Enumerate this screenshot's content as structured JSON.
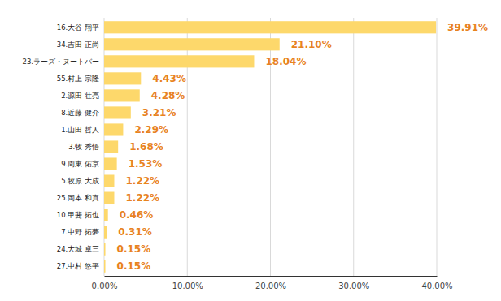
{
  "chart_data": {
    "type": "bar",
    "orientation": "horizontal",
    "categories": [
      "16.大谷 翔平",
      "34.吉田 正尚",
      "23.ラーズ・ヌートバー",
      "55.村上 宗隆",
      "2.源田 壮亮",
      "8.近藤 健介",
      "1.山田 哲人",
      "3.牧 秀悟",
      "9.周東 佑京",
      "5.牧原 大成",
      "25.岡本 和真",
      "10.甲斐 拓也",
      "7.中野 拓夢",
      "24.大城 卓三",
      "27.中村 悠平"
    ],
    "values": [
      39.91,
      21.1,
      18.04,
      4.43,
      4.28,
      3.21,
      2.29,
      1.68,
      1.53,
      1.22,
      1.22,
      0.46,
      0.31,
      0.15,
      0.15
    ],
    "value_labels": [
      "39.91%",
      "21.10%",
      "18.04%",
      "4.43%",
      "4.28%",
      "3.21%",
      "2.29%",
      "1.68%",
      "1.53%",
      "1.22%",
      "1.22%",
      "0.46%",
      "0.31%",
      "0.15%",
      "0.15%"
    ],
    "color": "#fdd86b",
    "xlim": [
      0,
      40
    ],
    "xticks": [
      {
        "value": 0,
        "label": "0.00%"
      },
      {
        "value": 10,
        "label": "10.00%"
      },
      {
        "value": 20,
        "label": "20.00%"
      },
      {
        "value": 30,
        "label": "30.00%"
      },
      {
        "value": 40,
        "label": "40.00%"
      }
    ],
    "grid": true,
    "data_labels": true
  }
}
